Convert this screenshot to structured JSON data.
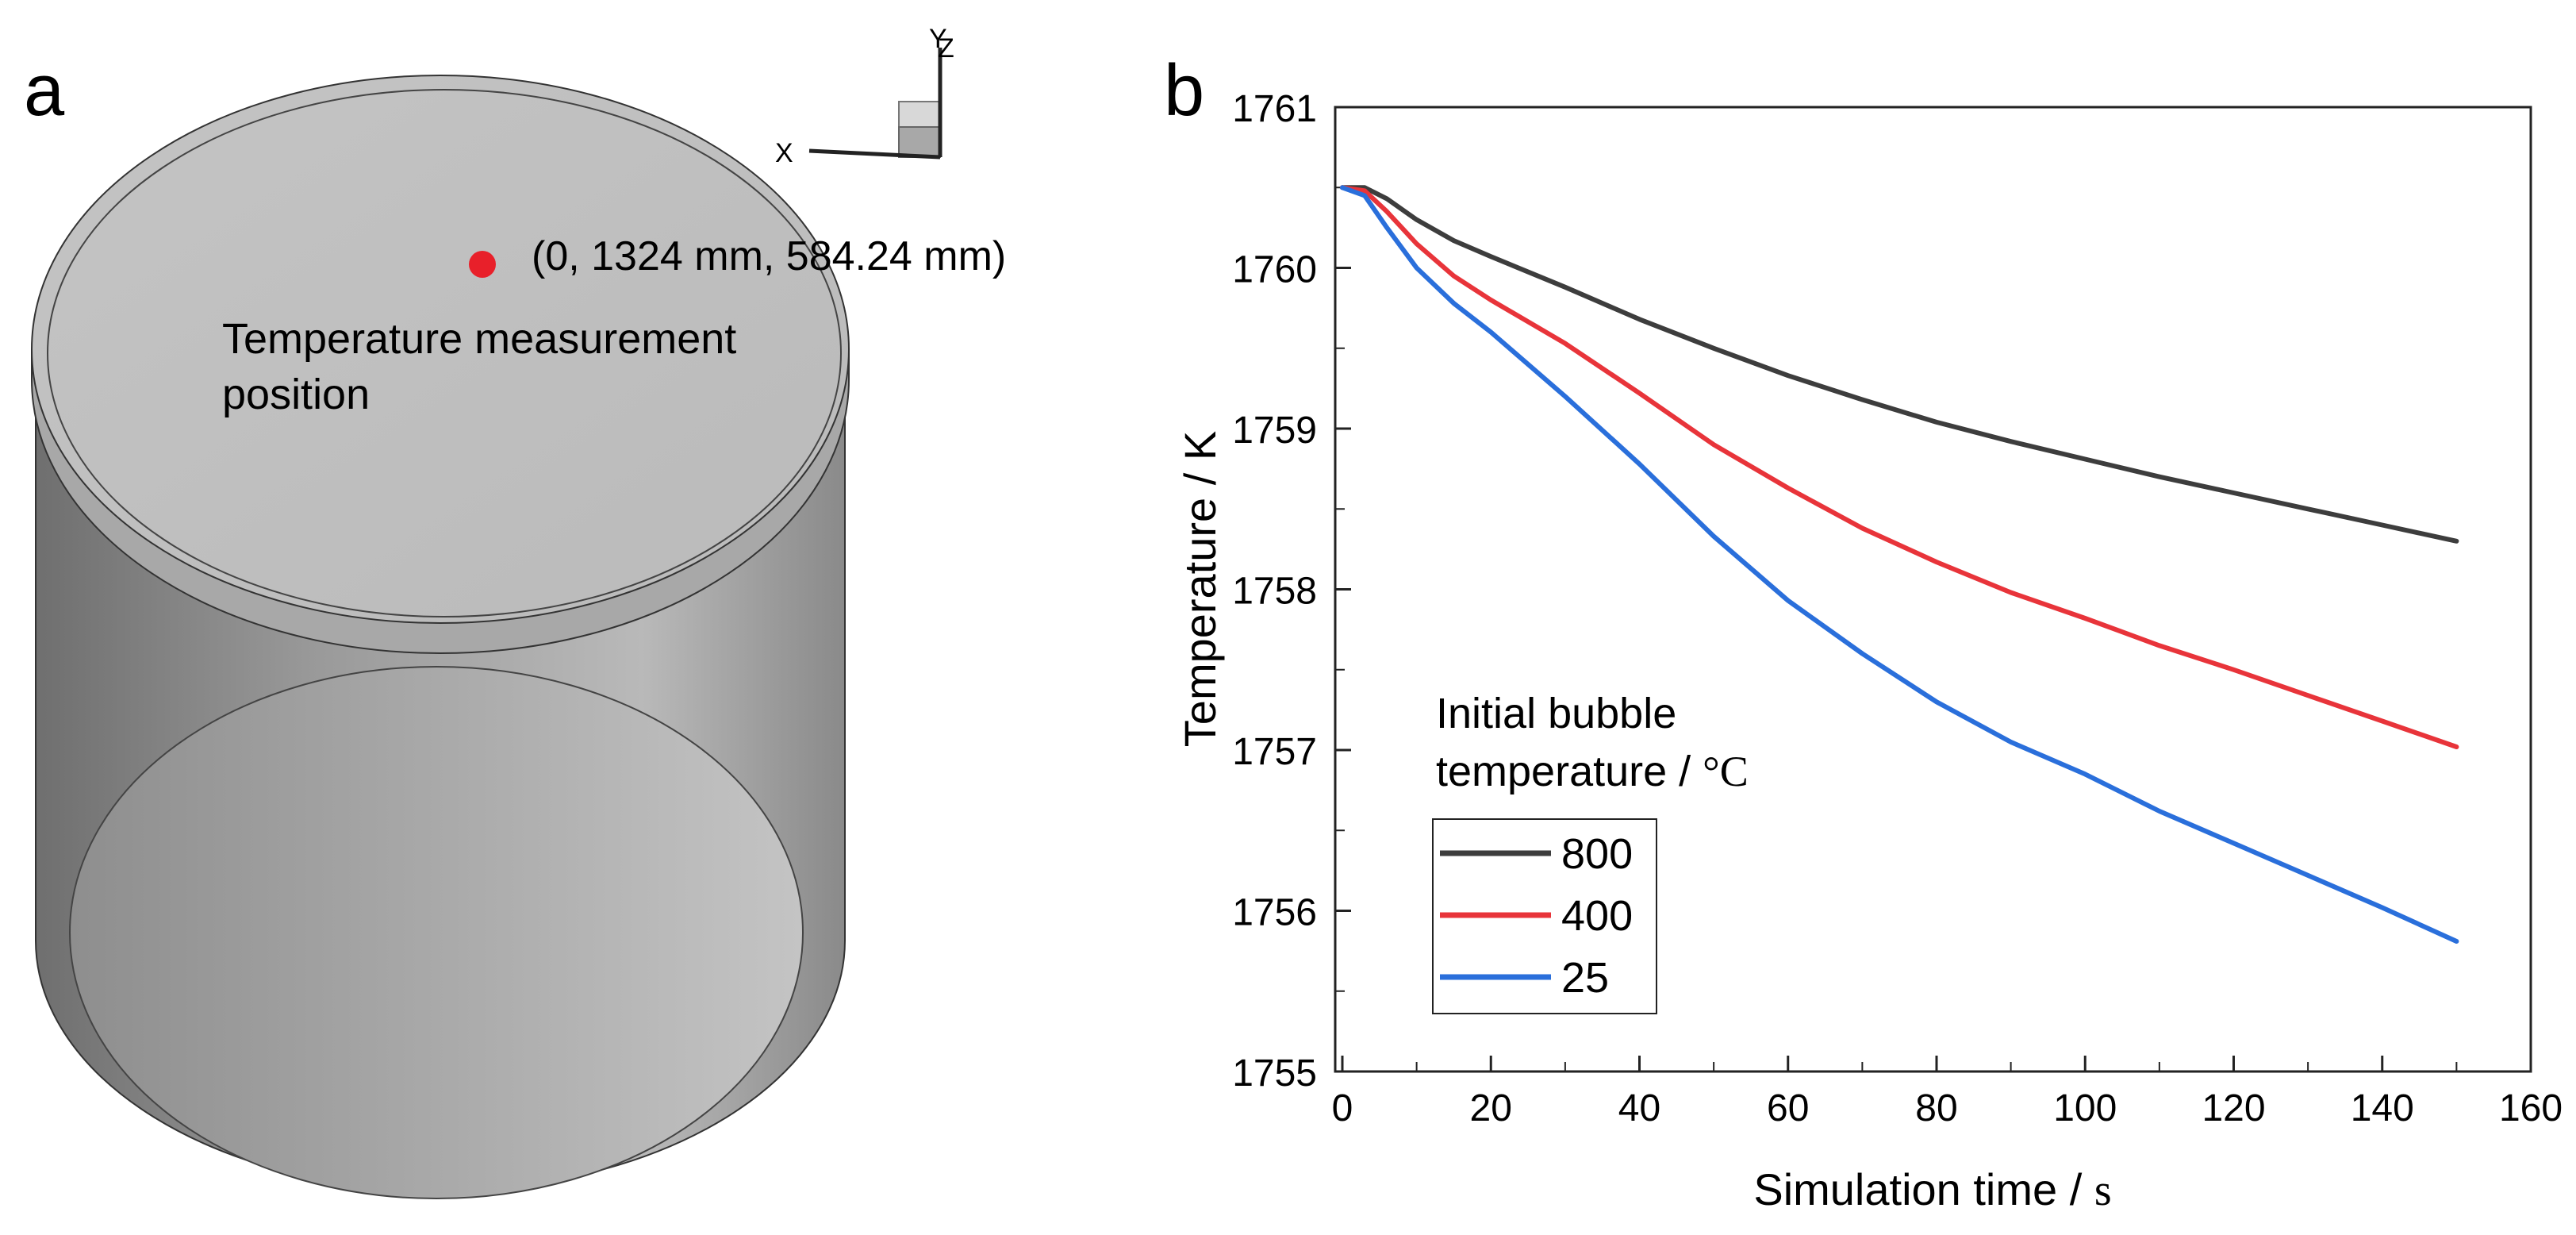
{
  "panel_a": {
    "label": "a",
    "point_coordinates": "(0, 1324 mm, 584.24 mm)",
    "caption_line1": "Temperature measurement",
    "caption_line2": "position",
    "axis_x": "X",
    "axis_y": "Y",
    "axis_z": "Z",
    "point_color": "#e8202a"
  },
  "panel_b": {
    "label": "b"
  },
  "chart_data": {
    "type": "line",
    "title": "",
    "xlabel": "Simulation time / ",
    "xlabel_unit": "s",
    "ylabel": "Temperature / K",
    "xlim": [
      0,
      160
    ],
    "ylim": [
      1755,
      1761
    ],
    "xticks": [
      0,
      20,
      40,
      60,
      80,
      100,
      120,
      140,
      160
    ],
    "yticks": [
      1755,
      1756,
      1757,
      1758,
      1759,
      1760,
      1761
    ],
    "legend_title_line1": "Initial bubble",
    "legend_title_line2": "temperature / ",
    "legend_title_unit": "°C",
    "legend_position": "bottom-left",
    "series": [
      {
        "name": "800",
        "color": "#3d3d3d",
        "x": [
          0,
          3,
          6,
          10,
          15,
          20,
          30,
          40,
          50,
          60,
          70,
          80,
          90,
          100,
          110,
          120,
          130,
          140,
          150
        ],
        "values": [
          1760.5,
          1760.5,
          1760.43,
          1760.3,
          1760.17,
          1760.07,
          1759.88,
          1759.68,
          1759.5,
          1759.33,
          1759.18,
          1759.04,
          1758.92,
          1758.81,
          1758.7,
          1758.6,
          1758.5,
          1758.4,
          1758.3
        ]
      },
      {
        "name": "400",
        "color": "#e8343a",
        "x": [
          0,
          3,
          6,
          10,
          15,
          20,
          30,
          40,
          50,
          60,
          70,
          80,
          90,
          100,
          110,
          120,
          130,
          140,
          150
        ],
        "values": [
          1760.5,
          1760.48,
          1760.35,
          1760.15,
          1759.95,
          1759.8,
          1759.53,
          1759.22,
          1758.9,
          1758.63,
          1758.38,
          1758.17,
          1757.98,
          1757.82,
          1757.65,
          1757.5,
          1757.34,
          1757.18,
          1757.02
        ]
      },
      {
        "name": "25",
        "color": "#2a6fdb",
        "x": [
          0,
          3,
          6,
          10,
          15,
          20,
          30,
          40,
          50,
          60,
          70,
          80,
          90,
          100,
          110,
          120,
          130,
          140,
          150
        ],
        "values": [
          1760.5,
          1760.45,
          1760.25,
          1760.0,
          1759.78,
          1759.6,
          1759.2,
          1758.78,
          1758.33,
          1757.93,
          1757.6,
          1757.3,
          1757.05,
          1756.85,
          1756.62,
          1756.42,
          1756.22,
          1756.02,
          1755.81
        ]
      }
    ]
  }
}
